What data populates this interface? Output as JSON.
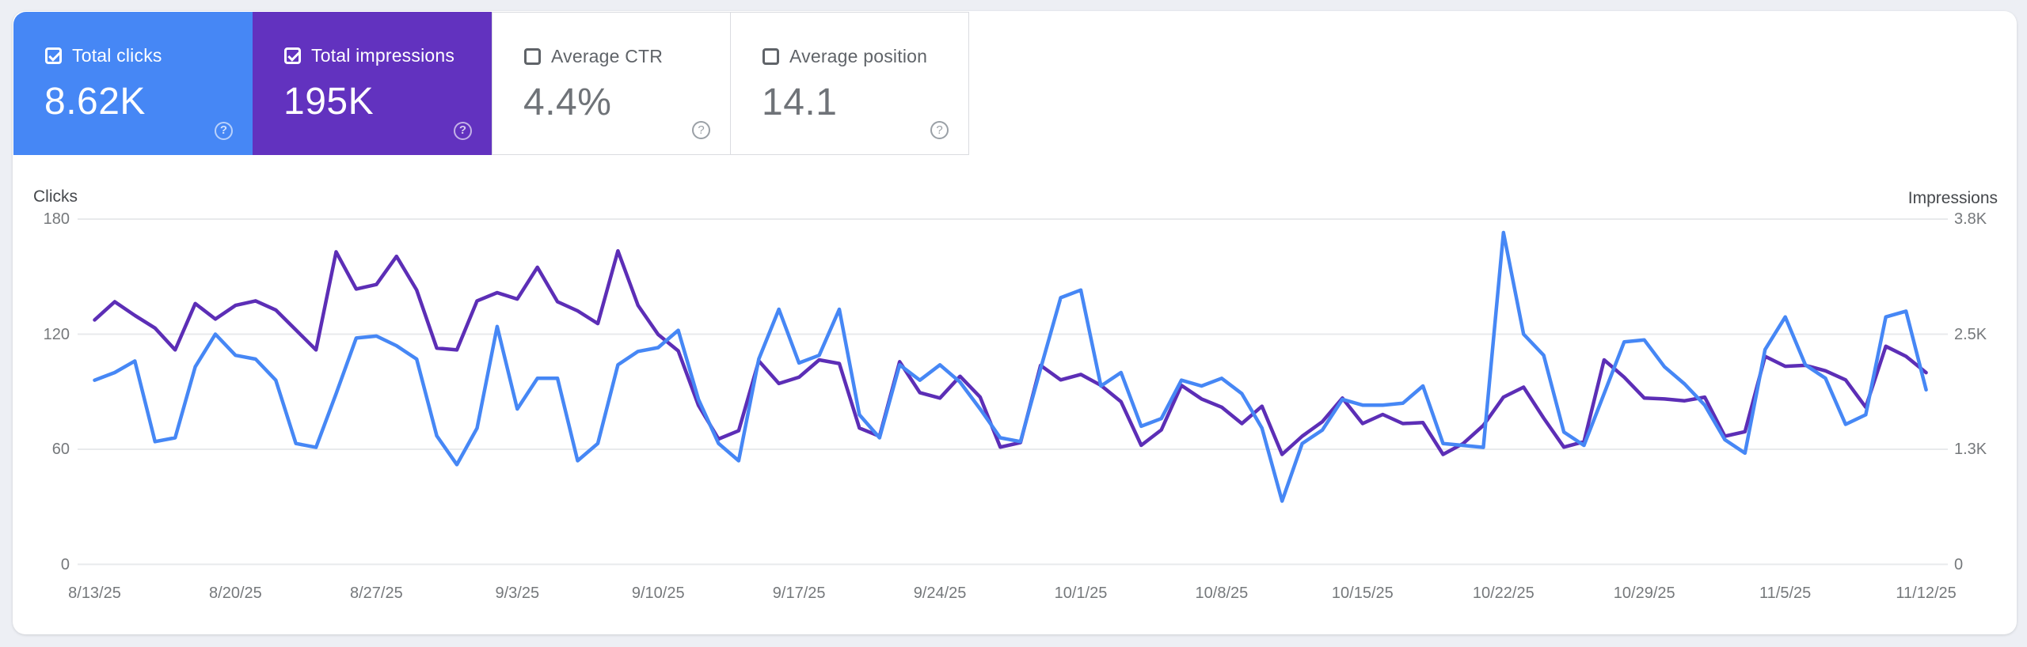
{
  "colors": {
    "page_background": "#edeff4",
    "panel_background": "#ffffff",
    "clicks_blue": "#4687f5",
    "impressions_purple": "#6232bf",
    "impressions_line": "#5c2eb6",
    "gridline": "#e8eaec",
    "tick_text": "#75787b",
    "axis_title_text": "#45484c"
  },
  "metric_cards": [
    {
      "label": "Total clicks",
      "value": "8.62K",
      "checked": true,
      "selected": true,
      "background": "#4687f5",
      "help_icon": "?"
    },
    {
      "label": "Total impressions",
      "value": "195K",
      "checked": true,
      "selected": true,
      "background": "#6232bf",
      "help_icon": "?"
    },
    {
      "label": "Average CTR",
      "value": "4.4%",
      "checked": false,
      "selected": false,
      "background": "#ffffff",
      "help_icon": "?"
    },
    {
      "label": "Average position",
      "value": "14.1",
      "checked": false,
      "selected": false,
      "background": "#ffffff",
      "help_icon": "?"
    }
  ],
  "chart_data": {
    "type": "line",
    "grid": true,
    "legend_position": "none",
    "left_axis": {
      "label": "Clicks",
      "tick_labels": [
        "180",
        "120",
        "60",
        "0"
      ],
      "tick_values": [
        180,
        120,
        60,
        0
      ],
      "ylim": [
        0,
        180
      ]
    },
    "right_axis": {
      "label": "Impressions",
      "tick_labels": [
        "3.8K",
        "2.5K",
        "1.3K",
        "0"
      ],
      "tick_values": [
        3800,
        2533,
        1267,
        0
      ],
      "ylim": [
        0,
        3800
      ]
    },
    "x_tick_labels": [
      "8/13/25",
      "8/20/25",
      "8/27/25",
      "9/3/25",
      "9/10/25",
      "9/17/25",
      "9/24/25",
      "10/1/25",
      "10/8/25",
      "10/15/25",
      "10/22/25",
      "10/29/25",
      "11/5/25",
      "11/12/25"
    ],
    "dates": [
      "8/13/25",
      "8/14/25",
      "8/15/25",
      "8/16/25",
      "8/17/25",
      "8/18/25",
      "8/19/25",
      "8/20/25",
      "8/21/25",
      "8/22/25",
      "8/23/25",
      "8/24/25",
      "8/25/25",
      "8/26/25",
      "8/27/25",
      "8/28/25",
      "8/29/25",
      "8/30/25",
      "8/31/25",
      "9/1/25",
      "9/2/25",
      "9/3/25",
      "9/4/25",
      "9/5/25",
      "9/6/25",
      "9/7/25",
      "9/8/25",
      "9/9/25",
      "9/10/25",
      "9/11/25",
      "9/12/25",
      "9/13/25",
      "9/14/25",
      "9/15/25",
      "9/16/25",
      "9/17/25",
      "9/18/25",
      "9/19/25",
      "9/20/25",
      "9/21/25",
      "9/22/25",
      "9/23/25",
      "9/24/25",
      "9/25/25",
      "9/26/25",
      "9/27/25",
      "9/28/25",
      "9/29/25",
      "9/30/25",
      "10/1/25",
      "10/2/25",
      "10/3/25",
      "10/4/25",
      "10/5/25",
      "10/6/25",
      "10/7/25",
      "10/8/25",
      "10/9/25",
      "10/10/25",
      "10/11/25",
      "10/12/25",
      "10/13/25",
      "10/14/25",
      "10/15/25",
      "10/16/25",
      "10/17/25",
      "10/18/25",
      "10/19/25",
      "10/20/25",
      "10/21/25",
      "10/22/25",
      "10/23/25",
      "10/24/25",
      "10/25/25",
      "10/26/25",
      "10/27/25",
      "10/28/25",
      "10/29/25",
      "10/30/25",
      "10/31/25",
      "11/1/25",
      "11/2/25",
      "11/3/25",
      "11/4/25",
      "11/5/25",
      "11/6/25",
      "11/7/25",
      "11/8/25",
      "11/9/25",
      "11/10/25",
      "11/11/25",
      "11/12/25"
    ],
    "series": [
      {
        "name": "Impressions",
        "axis": "right",
        "color": "#5c2eb6",
        "values": [
          2690,
          2890,
          2740,
          2600,
          2360,
          2870,
          2700,
          2850,
          2900,
          2800,
          2580,
          2360,
          3440,
          3030,
          3080,
          3390,
          3020,
          2380,
          2360,
          2900,
          2990,
          2920,
          3270,
          2890,
          2790,
          2650,
          3450,
          2850,
          2530,
          2350,
          1750,
          1380,
          1470,
          2240,
          1990,
          2060,
          2250,
          2210,
          1500,
          1410,
          2230,
          1890,
          1830,
          2070,
          1840,
          1290,
          1340,
          2190,
          2030,
          2090,
          1970,
          1790,
          1310,
          1480,
          1970,
          1820,
          1730,
          1550,
          1740,
          1210,
          1410,
          1570,
          1830,
          1550,
          1650,
          1550,
          1560,
          1210,
          1330,
          1530,
          1840,
          1950,
          1610,
          1290,
          1350,
          2250,
          2060,
          1830,
          1820,
          1800,
          1840,
          1410,
          1460,
          2290,
          2180,
          2190,
          2130,
          2030,
          1730,
          2400,
          2290,
          2110
        ]
      },
      {
        "name": "Clicks",
        "axis": "left",
        "color": "#4687f5",
        "values": [
          96,
          100,
          106,
          64,
          66,
          103,
          120,
          109,
          107,
          96,
          63,
          61,
          89,
          118,
          119,
          114,
          107,
          67,
          52,
          71,
          124,
          81,
          97,
          97,
          54,
          63,
          104,
          111,
          113,
          122,
          86,
          63,
          54,
          107,
          133,
          105,
          109,
          133,
          78,
          66,
          104,
          96,
          104,
          95,
          81,
          66,
          64,
          102,
          139,
          143,
          93,
          100,
          72,
          76,
          96,
          93,
          97,
          89,
          71,
          33,
          63,
          70,
          86,
          83,
          83,
          84,
          93,
          63,
          62,
          61,
          173,
          120,
          109,
          69,
          62,
          89,
          116,
          117,
          103,
          94,
          83,
          65,
          58,
          112,
          129,
          104,
          97,
          73,
          78,
          129,
          132,
          91
        ]
      }
    ]
  }
}
